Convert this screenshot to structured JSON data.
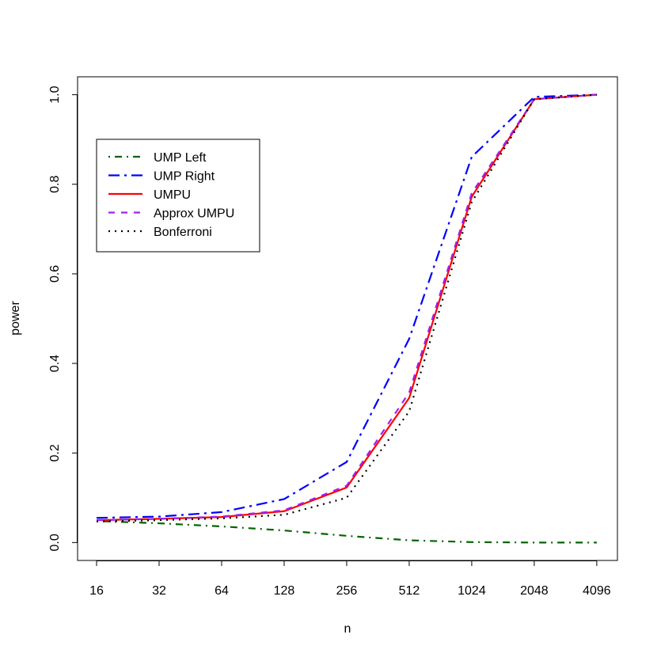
{
  "chart_data": {
    "type": "line",
    "xlabel": "n",
    "ylabel": "power",
    "x": [
      16,
      32,
      64,
      128,
      256,
      512,
      1024,
      2048,
      4096
    ],
    "xscale": "log",
    "xlim": [
      12.96,
      5150
    ],
    "xticks": [
      16,
      32,
      64,
      128,
      256,
      512,
      1024,
      2048,
      4096
    ],
    "ylim": [
      -0.04,
      1.04
    ],
    "yticks": [
      {
        "value": 0,
        "label": "0.0"
      },
      0.2,
      0.4,
      0.6,
      0.8,
      {
        "value": 1,
        "label": "1.0"
      }
    ],
    "legend": "top-left",
    "series": [
      {
        "name": "UMP Left",
        "color": "#006400",
        "linestyle": "dotdash",
        "values": [
          0.048,
          0.043,
          0.036,
          0.027,
          0.015,
          0.005,
          0.001,
          0.0,
          0.0
        ]
      },
      {
        "name": "UMP Right",
        "color": "#0000ff",
        "linestyle": "twodash",
        "values": [
          0.055,
          0.058,
          0.068,
          0.097,
          0.18,
          0.455,
          0.861,
          0.995,
          1.0
        ]
      },
      {
        "name": "UMPU",
        "color": "#ff0000",
        "linestyle": "solid",
        "values": [
          0.05,
          0.053,
          0.057,
          0.07,
          0.123,
          0.323,
          0.772,
          0.99,
          1.0
        ]
      },
      {
        "name": "Approx UMPU",
        "color": "#a020f0",
        "linestyle": "dashed",
        "values": [
          0.05,
          0.053,
          0.058,
          0.072,
          0.127,
          0.335,
          0.78,
          0.99,
          1.0
        ]
      },
      {
        "name": "Bonferroni",
        "color": "#000000",
        "linestyle": "dotted",
        "values": [
          0.047,
          0.05,
          0.054,
          0.062,
          0.1,
          0.293,
          0.76,
          0.99,
          1.0
        ]
      }
    ]
  }
}
